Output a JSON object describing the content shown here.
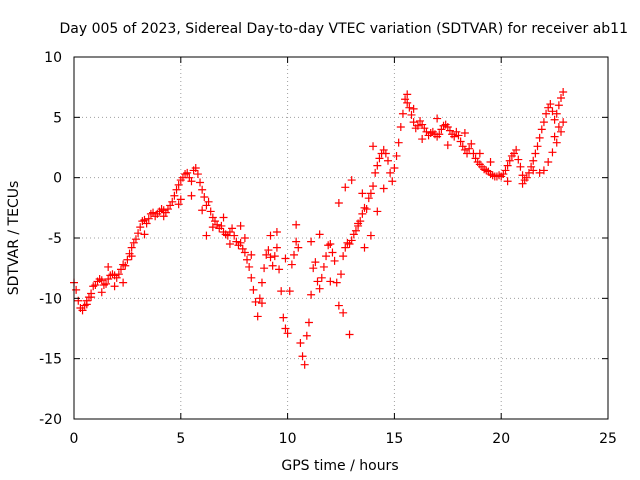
{
  "chart_data": {
    "type": "scatter",
    "title": "Day 005 of 2023, Sidereal Day-to-day VTEC variation (SDTVAR) for receiver ab11",
    "xlabel": "GPS time / hours",
    "ylabel": "SDTVAR / TECUs",
    "xlim": [
      0,
      25
    ],
    "ylim": [
      -20,
      10
    ],
    "xticks": [
      "0",
      "5",
      "10",
      "15",
      "20",
      "25"
    ],
    "yticks": [
      "-20",
      "-15",
      "-10",
      "-5",
      "0",
      "5",
      "10"
    ],
    "grid": true,
    "marker": "+",
    "color": "#ff0000",
    "series": [
      {
        "values": [
          [
            0.0,
            -8.7
          ],
          [
            0.1,
            -9.3
          ],
          [
            0.2,
            -10.2
          ],
          [
            0.3,
            -10.8
          ],
          [
            0.4,
            -11.0
          ],
          [
            0.5,
            -10.6
          ],
          [
            0.6,
            -10.2
          ],
          [
            0.7,
            -9.9
          ],
          [
            0.8,
            -9.6
          ],
          [
            0.9,
            -9.0
          ],
          [
            1.0,
            -8.9
          ],
          [
            1.1,
            -8.6
          ],
          [
            1.2,
            -8.4
          ],
          [
            1.3,
            -8.5
          ],
          [
            1.4,
            -8.9
          ],
          [
            1.5,
            -8.8
          ],
          [
            1.6,
            -8.4
          ],
          [
            1.7,
            -8.1
          ],
          [
            1.8,
            -8.0
          ],
          [
            1.9,
            -8.1
          ],
          [
            2.0,
            -8.3
          ],
          [
            2.1,
            -8.0
          ],
          [
            2.2,
            -7.6
          ],
          [
            2.3,
            -7.2
          ],
          [
            2.4,
            -7.3
          ],
          [
            2.5,
            -6.8
          ],
          [
            2.6,
            -6.3
          ],
          [
            2.7,
            -5.8
          ],
          [
            2.8,
            -5.4
          ],
          [
            2.9,
            -5.1
          ],
          [
            3.0,
            -4.6
          ],
          [
            3.1,
            -4.1
          ],
          [
            3.2,
            -3.6
          ],
          [
            3.3,
            -3.5
          ],
          [
            3.4,
            -3.8
          ],
          [
            3.5,
            -3.4
          ],
          [
            3.6,
            -3.0
          ],
          [
            3.7,
            -2.9
          ],
          [
            3.8,
            -3.2
          ],
          [
            3.9,
            -3.0
          ],
          [
            4.0,
            -2.8
          ],
          [
            4.1,
            -2.6
          ],
          [
            4.2,
            -2.7
          ],
          [
            4.3,
            -2.9
          ],
          [
            4.4,
            -2.6
          ],
          [
            4.5,
            -2.3
          ],
          [
            4.6,
            -2.0
          ],
          [
            4.7,
            -1.5
          ],
          [
            4.8,
            -1.0
          ],
          [
            4.9,
            -0.6
          ],
          [
            5.0,
            -0.2
          ],
          [
            5.1,
            0.0
          ],
          [
            5.2,
            0.3
          ],
          [
            5.3,
            0.4
          ],
          [
            5.4,
            0.0
          ],
          [
            5.5,
            -0.3
          ],
          [
            5.6,
            0.6
          ],
          [
            5.7,
            0.8
          ],
          [
            5.8,
            0.3
          ],
          [
            5.9,
            -0.4
          ],
          [
            6.0,
            -1.0
          ],
          [
            6.1,
            -1.6
          ],
          [
            6.2,
            -2.3
          ],
          [
            6.3,
            -2.0
          ],
          [
            6.4,
            -2.8
          ],
          [
            6.5,
            -3.3
          ],
          [
            6.6,
            -3.6
          ],
          [
            6.7,
            -3.9
          ],
          [
            6.8,
            -4.2
          ],
          [
            6.9,
            -4.0
          ],
          [
            7.0,
            -4.5
          ],
          [
            7.1,
            -4.7
          ],
          [
            7.2,
            -4.8
          ],
          [
            7.3,
            -4.5
          ],
          [
            7.4,
            -4.2
          ],
          [
            7.5,
            -4.8
          ],
          [
            7.6,
            -5.3
          ],
          [
            7.7,
            -5.6
          ],
          [
            7.8,
            -5.4
          ],
          [
            7.9,
            -5.9
          ],
          [
            8.0,
            -6.2
          ],
          [
            8.1,
            -6.8
          ],
          [
            8.2,
            -7.4
          ],
          [
            8.3,
            -8.3
          ],
          [
            8.4,
            -9.3
          ],
          [
            8.5,
            -10.3
          ],
          [
            8.6,
            -11.5
          ],
          [
            8.7,
            -10.0
          ],
          [
            8.8,
            -8.7
          ],
          [
            8.9,
            -7.5
          ],
          [
            9.0,
            -6.4
          ],
          [
            9.1,
            -6.0
          ],
          [
            9.2,
            -6.6
          ],
          [
            9.3,
            -7.3
          ],
          [
            9.4,
            -6.5
          ],
          [
            9.5,
            -5.8
          ],
          [
            9.6,
            -7.6
          ],
          [
            9.7,
            -9.4
          ],
          [
            9.8,
            -11.6
          ],
          [
            9.9,
            -12.5
          ],
          [
            10.0,
            -12.9
          ],
          [
            10.1,
            -9.4
          ],
          [
            10.2,
            -7.2
          ],
          [
            10.3,
            -6.4
          ],
          [
            10.4,
            -5.3
          ],
          [
            10.5,
            -5.8
          ],
          [
            10.6,
            -13.7
          ],
          [
            10.7,
            -14.8
          ],
          [
            10.8,
            -15.5
          ],
          [
            10.9,
            -13.1
          ],
          [
            11.0,
            -12.0
          ],
          [
            11.1,
            -9.7
          ],
          [
            11.2,
            -7.5
          ],
          [
            11.3,
            -7.0
          ],
          [
            11.4,
            -8.6
          ],
          [
            11.5,
            -9.2
          ],
          [
            11.6,
            -8.3
          ],
          [
            11.7,
            -7.4
          ],
          [
            11.8,
            -6.5
          ],
          [
            11.9,
            -5.6
          ],
          [
            12.0,
            -5.5
          ],
          [
            12.1,
            -6.2
          ],
          [
            12.2,
            -6.9
          ],
          [
            12.3,
            -8.7
          ],
          [
            12.4,
            -10.6
          ],
          [
            12.5,
            -8.0
          ],
          [
            12.6,
            -6.5
          ],
          [
            12.7,
            -5.8
          ],
          [
            12.8,
            -5.4
          ],
          [
            12.9,
            -5.5
          ],
          [
            13.0,
            -5.2
          ],
          [
            13.1,
            -4.7
          ],
          [
            13.2,
            -4.4
          ],
          [
            13.3,
            -4.0
          ],
          [
            13.4,
            -3.6
          ],
          [
            13.5,
            -3.0
          ],
          [
            13.6,
            -2.5
          ],
          [
            13.7,
            -2.6
          ],
          [
            13.8,
            -1.7
          ],
          [
            13.9,
            -1.3
          ],
          [
            14.0,
            -0.7
          ],
          [
            14.1,
            0.4
          ],
          [
            14.2,
            1.0
          ],
          [
            14.3,
            1.6
          ],
          [
            14.4,
            2.0
          ],
          [
            14.5,
            2.3
          ],
          [
            14.6,
            2.0
          ],
          [
            14.7,
            1.4
          ],
          [
            14.8,
            0.4
          ],
          [
            14.9,
            -0.3
          ],
          [
            15.0,
            0.8
          ],
          [
            15.1,
            1.8
          ],
          [
            15.2,
            2.9
          ],
          [
            15.3,
            4.2
          ],
          [
            15.4,
            5.3
          ],
          [
            15.5,
            6.5
          ],
          [
            15.6,
            6.2
          ],
          [
            15.7,
            5.8
          ],
          [
            15.8,
            5.2
          ],
          [
            15.9,
            4.6
          ],
          [
            16.0,
            4.1
          ],
          [
            16.1,
            4.3
          ],
          [
            16.2,
            4.7
          ],
          [
            16.3,
            4.4
          ],
          [
            16.4,
            4.1
          ],
          [
            16.5,
            3.8
          ],
          [
            16.6,
            3.5
          ],
          [
            16.7,
            3.7
          ],
          [
            16.8,
            3.8
          ],
          [
            16.9,
            3.6
          ],
          [
            17.0,
            3.4
          ],
          [
            17.1,
            3.6
          ],
          [
            17.2,
            4.0
          ],
          [
            17.3,
            4.3
          ],
          [
            17.4,
            4.4
          ],
          [
            17.5,
            4.2
          ],
          [
            17.6,
            3.9
          ],
          [
            17.7,
            3.6
          ],
          [
            17.8,
            3.4
          ],
          [
            17.9,
            3.8
          ],
          [
            18.0,
            3.5
          ],
          [
            18.1,
            3.0
          ],
          [
            18.2,
            2.6
          ],
          [
            18.3,
            2.3
          ],
          [
            18.4,
            2.0
          ],
          [
            18.5,
            2.4
          ],
          [
            18.6,
            2.8
          ],
          [
            18.7,
            2.0
          ],
          [
            18.8,
            1.6
          ],
          [
            18.9,
            1.3
          ],
          [
            19.0,
            1.1
          ],
          [
            19.1,
            0.9
          ],
          [
            19.2,
            0.7
          ],
          [
            19.3,
            0.6
          ],
          [
            19.4,
            0.5
          ],
          [
            19.5,
            0.3
          ],
          [
            19.6,
            0.2
          ],
          [
            19.7,
            0.1
          ],
          [
            19.8,
            0.1
          ],
          [
            19.9,
            0.2
          ],
          [
            20.0,
            0.1
          ],
          [
            20.1,
            0.3
          ],
          [
            20.2,
            0.6
          ],
          [
            20.3,
            1.0
          ],
          [
            20.4,
            1.4
          ],
          [
            20.5,
            1.8
          ],
          [
            20.6,
            2.0
          ],
          [
            20.7,
            2.3
          ],
          [
            20.8,
            1.5
          ],
          [
            20.9,
            0.9
          ],
          [
            21.0,
            0.2
          ],
          [
            21.1,
            -0.2
          ],
          [
            21.2,
            0.0
          ],
          [
            21.3,
            0.4
          ],
          [
            21.4,
            0.9
          ],
          [
            21.5,
            1.4
          ],
          [
            21.6,
            2.0
          ],
          [
            21.7,
            2.6
          ],
          [
            21.8,
            3.3
          ],
          [
            21.9,
            4.0
          ],
          [
            22.0,
            4.6
          ],
          [
            22.1,
            5.3
          ],
          [
            22.2,
            5.8
          ],
          [
            22.3,
            6.1
          ],
          [
            22.4,
            5.5
          ],
          [
            22.5,
            4.8
          ],
          [
            22.6,
            5.3
          ],
          [
            22.7,
            6.0
          ],
          [
            22.8,
            6.6
          ],
          [
            22.9,
            7.1
          ],
          [
            22.0,
            0.6
          ],
          [
            22.2,
            1.3
          ],
          [
            22.4,
            2.1
          ],
          [
            22.6,
            2.9
          ],
          [
            22.8,
            3.8
          ],
          [
            22.9,
            4.6
          ],
          [
            22.5,
            3.4
          ],
          [
            22.7,
            4.2
          ],
          [
            21.8,
            0.4
          ],
          [
            21.5,
            0.6
          ],
          [
            0.6,
            -10.5
          ],
          [
            0.8,
            -9.9
          ],
          [
            1.3,
            -9.5
          ],
          [
            1.6,
            -7.4
          ],
          [
            1.9,
            -9.0
          ],
          [
            2.3,
            -8.7
          ],
          [
            2.7,
            -6.5
          ],
          [
            3.3,
            -4.7
          ],
          [
            4.2,
            -3.2
          ],
          [
            4.9,
            -2.2
          ],
          [
            5.0,
            -1.8
          ],
          [
            5.5,
            -1.5
          ],
          [
            6.0,
            -2.7
          ],
          [
            6.2,
            -4.8
          ],
          [
            6.5,
            -4.1
          ],
          [
            7.0,
            -3.3
          ],
          [
            7.3,
            -5.5
          ],
          [
            7.8,
            -4.0
          ],
          [
            8.0,
            -5.0
          ],
          [
            8.3,
            -6.4
          ],
          [
            8.8,
            -10.4
          ],
          [
            9.2,
            -4.8
          ],
          [
            9.5,
            -4.5
          ],
          [
            9.9,
            -6.7
          ],
          [
            10.4,
            -3.9
          ],
          [
            11.1,
            -5.3
          ],
          [
            11.5,
            -4.7
          ],
          [
            12.0,
            -8.6
          ],
          [
            12.6,
            -11.2
          ],
          [
            12.9,
            -13.0
          ],
          [
            12.4,
            -2.1
          ],
          [
            12.7,
            -0.8
          ],
          [
            13.0,
            -0.2
          ],
          [
            13.5,
            -1.3
          ],
          [
            14.0,
            2.6
          ],
          [
            14.5,
            -0.9
          ],
          [
            14.2,
            -2.8
          ],
          [
            13.9,
            -4.8
          ],
          [
            13.6,
            -5.8
          ],
          [
            13.3,
            -3.8
          ],
          [
            15.6,
            6.9
          ],
          [
            16.3,
            3.2
          ],
          [
            17.0,
            4.9
          ],
          [
            18.3,
            3.7
          ],
          [
            19.5,
            1.3
          ],
          [
            20.3,
            -0.3
          ],
          [
            21.0,
            -0.5
          ],
          [
            19.0,
            2.0
          ],
          [
            17.5,
            2.7
          ],
          [
            15.9,
            5.7
          ]
        ]
      }
    ]
  }
}
